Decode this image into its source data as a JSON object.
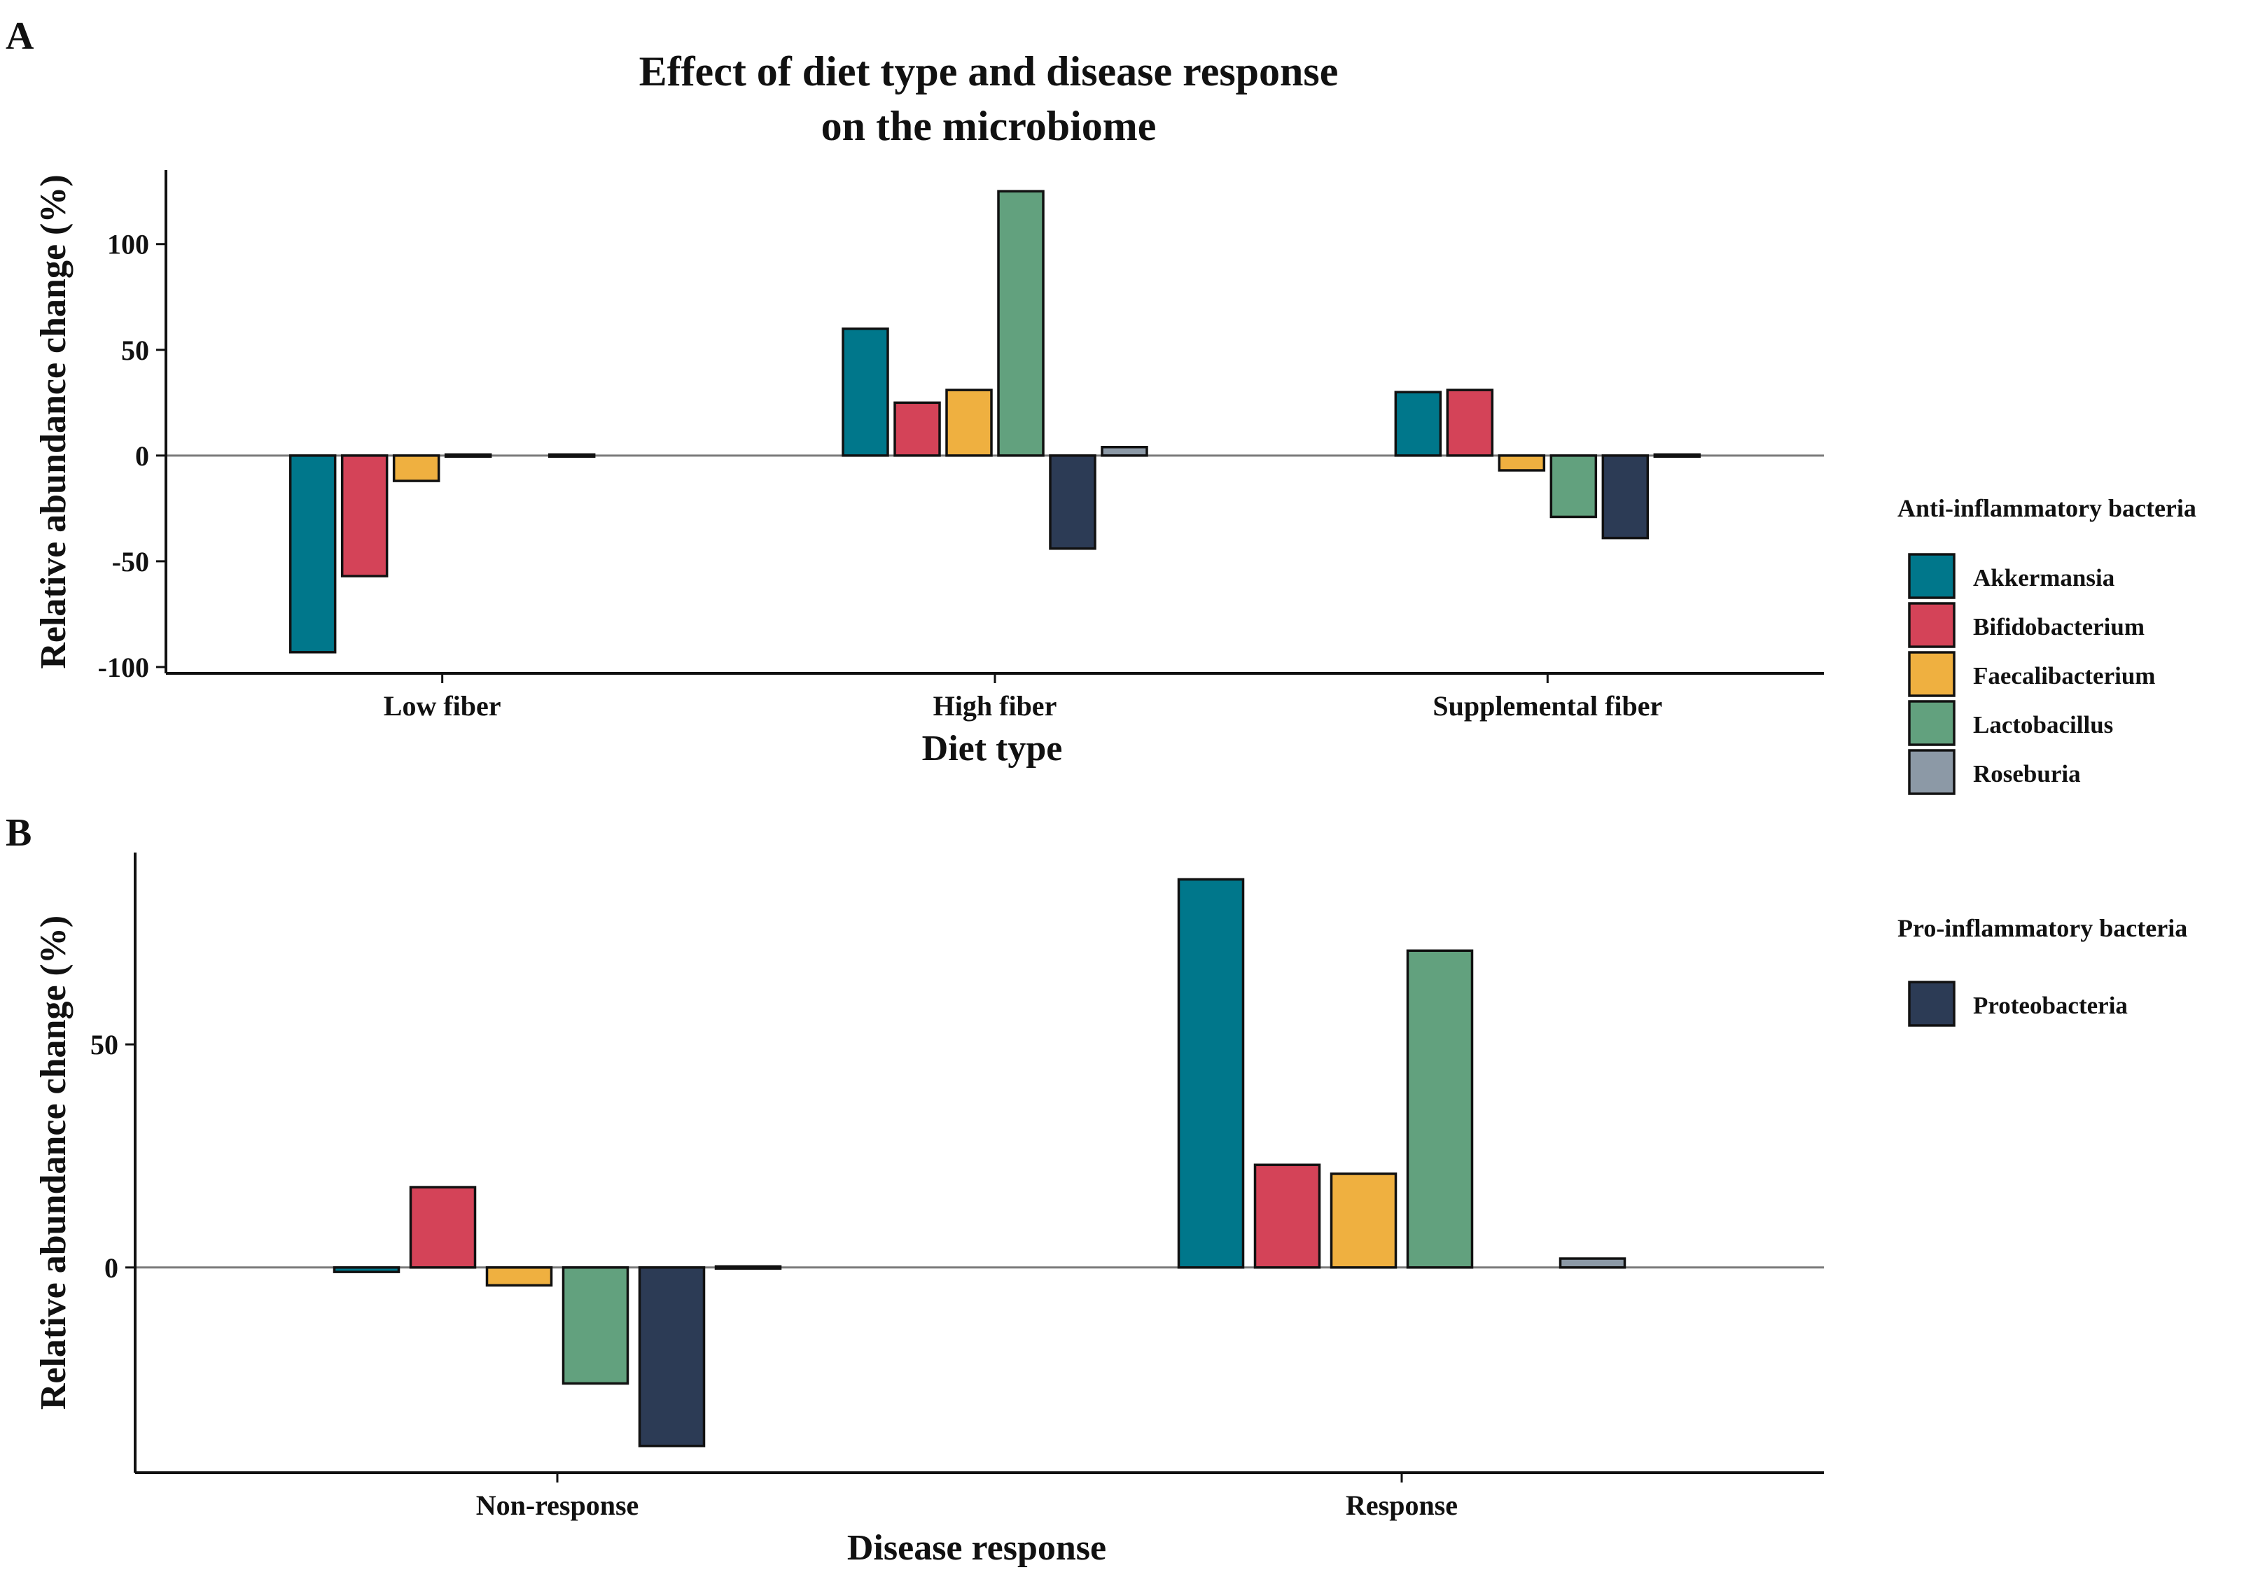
{
  "figure": {
    "panel_a_label": "A",
    "panel_b_label": "B"
  },
  "legend": {
    "anti_title": "Anti-inflammatory bacteria",
    "anti_items": [
      {
        "name": "Akkermansia",
        "color": "#00778b"
      },
      {
        "name": "Bifidobacterium",
        "color": "#d44358"
      },
      {
        "name": "Faecalibacterium",
        "color": "#efb040"
      },
      {
        "name": "Lactobacillus",
        "color": "#62a17e"
      },
      {
        "name": "Roseburia",
        "color": "#8c99a6"
      }
    ],
    "pro_title": "Pro-inflammatory bacteria",
    "pro_items": [
      {
        "name": "Proteobacteria",
        "color": "#2c3b55"
      }
    ]
  },
  "chart_data": [
    {
      "type": "bar",
      "title": "Effect of diet type and disease response on the microbiome",
      "title_lines": [
        "Effect of diet type and disease response",
        "on the microbiome"
      ],
      "xlabel": "Diet type",
      "ylabel": "Relative abundance change (%)",
      "categories": [
        "Low fiber",
        "High fiber",
        "Supplemental fiber"
      ],
      "ylim": [
        -103,
        135
      ],
      "yticks": [
        -100,
        -50,
        0,
        50,
        100
      ],
      "series": [
        {
          "name": "Akkermansia",
          "values": [
            -93,
            60,
            30
          ]
        },
        {
          "name": "Bifidobacterium",
          "values": [
            -57,
            25,
            31
          ]
        },
        {
          "name": "Faecalibacterium",
          "values": [
            -12,
            31,
            -7
          ]
        },
        {
          "name": "Lactobacillus",
          "values": [
            0,
            125,
            -29
          ]
        },
        {
          "name": "Proteobacteria",
          "values": [
            null,
            -44,
            -39
          ]
        },
        {
          "name": "Roseburia",
          "values": [
            0,
            4,
            0
          ]
        }
      ]
    },
    {
      "type": "bar",
      "title": "",
      "xlabel": "Disease response",
      "ylabel": "Relative abundance change (%)",
      "categories": [
        "Non-response",
        "Response"
      ],
      "ylim": [
        -46,
        93
      ],
      "yticks": [
        0,
        50
      ],
      "series": [
        {
          "name": "Akkermansia",
          "values": [
            -1,
            87
          ]
        },
        {
          "name": "Bifidobacterium",
          "values": [
            18,
            23
          ]
        },
        {
          "name": "Faecalibacterium",
          "values": [
            -4,
            21
          ]
        },
        {
          "name": "Lactobacillus",
          "values": [
            -26,
            71
          ]
        },
        {
          "name": "Proteobacteria",
          "values": [
            -40,
            null
          ]
        },
        {
          "name": "Roseburia",
          "values": [
            0,
            2
          ]
        }
      ]
    }
  ]
}
